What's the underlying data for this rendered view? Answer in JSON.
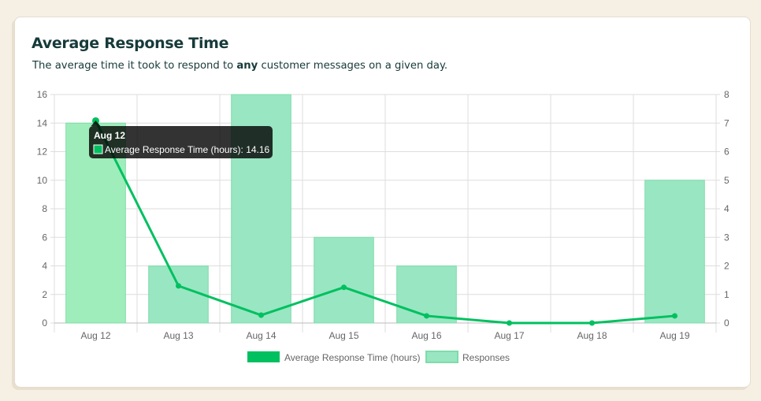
{
  "header": {
    "title": "Average Response Time",
    "subtitle_before": "The average time it took to respond to ",
    "subtitle_bold": "any",
    "subtitle_after": " customer messages on a given day."
  },
  "tooltip": {
    "title": "Aug 12",
    "label": "Average Response Time (hours): 14.16"
  },
  "colors": {
    "line": "#00c060",
    "bar_fill": "#99e6c2",
    "bar_highlight": "#9eedba",
    "bar_border": "#7fdca8",
    "grid": "#dddddd"
  },
  "chart_data": {
    "type": "bar",
    "categories": [
      "Aug 12",
      "Aug 13",
      "Aug 14",
      "Aug 15",
      "Aug 16",
      "Aug 17",
      "Aug 18",
      "Aug 19"
    ],
    "series": [
      {
        "name": "Average Response Time (hours)",
        "type": "line",
        "axis": "left",
        "values": [
          14.16,
          2.6,
          0.55,
          2.5,
          0.5,
          0.0,
          0.0,
          0.5
        ]
      },
      {
        "name": "Responses",
        "type": "bar",
        "axis": "right",
        "values": [
          7,
          2,
          8,
          3,
          2,
          0,
          0,
          5
        ]
      }
    ],
    "left_axis": {
      "ylim": [
        0,
        16
      ],
      "ticks": [
        "0",
        "2",
        "4",
        "6",
        "8",
        "10",
        "12",
        "14",
        "16"
      ]
    },
    "right_axis": {
      "ylim": [
        0,
        8
      ],
      "ticks": [
        "0",
        "1",
        "2",
        "3",
        "4",
        "5",
        "6",
        "7",
        "8"
      ]
    },
    "grid": true,
    "legend_position": "bottom"
  }
}
